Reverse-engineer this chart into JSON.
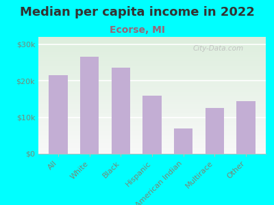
{
  "title": "Median per capita income in 2022",
  "subtitle": "Ecorse, MI",
  "categories": [
    "All",
    "White",
    "Black",
    "Hispanic",
    "American Indian",
    "Multirace",
    "Other"
  ],
  "values": [
    21500,
    26500,
    23500,
    16000,
    7000,
    12500,
    14500
  ],
  "bar_color": "#c3aed4",
  "background_outer": "#00ffff",
  "bg_top_color": "#ddeedd",
  "bg_bottom_color": "#f8f8f8",
  "title_color": "#333333",
  "subtitle_color": "#996677",
  "tick_label_color": "#778877",
  "ytick_labels": [
    "$0",
    "$10k",
    "$20k",
    "$30k"
  ],
  "ytick_values": [
    0,
    10000,
    20000,
    30000
  ],
  "ylim": [
    0,
    32000
  ],
  "watermark": "City-Data.com",
  "title_fontsize": 13,
  "subtitle_fontsize": 10,
  "tick_fontsize": 8
}
